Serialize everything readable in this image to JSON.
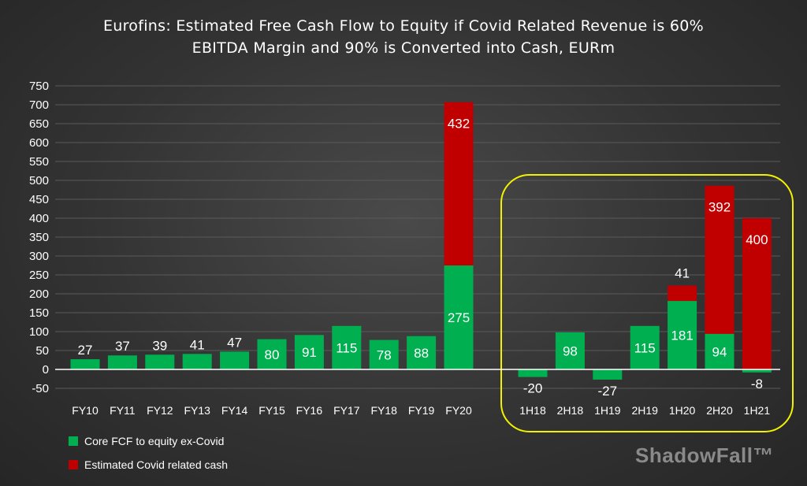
{
  "chart_data": {
    "type": "bar",
    "stacked": true,
    "title": "Eurofins: Estimated Free Cash Flow to Equity if Covid Related Revenue is 60%",
    "subtitle": "EBITDA Margin and 90% is Converted into Cash, EURm",
    "xlabel": "",
    "ylabel": "",
    "ylim": [
      -50,
      750
    ],
    "yticks": [
      -50,
      0,
      50,
      100,
      150,
      200,
      250,
      300,
      350,
      400,
      450,
      500,
      550,
      600,
      650,
      700,
      750
    ],
    "grid": true,
    "legend_position": "bottom-left",
    "categories": [
      "FY10",
      "FY11",
      "FY12",
      "FY13",
      "FY14",
      "FY15",
      "FY16",
      "FY17",
      "FY18",
      "FY19",
      "FY20",
      "1H18",
      "2H18",
      "1H19",
      "2H19",
      "1H20",
      "2H20",
      "1H21"
    ],
    "series": [
      {
        "name": "Core FCF to equity ex-Covid",
        "color": "#00b050",
        "values": [
          27,
          37,
          39,
          41,
          47,
          80,
          91,
          115,
          78,
          88,
          275,
          -20,
          98,
          -27,
          115,
          181,
          94,
          -8
        ],
        "labels": [
          "27",
          "37",
          "39",
          "41",
          "47",
          "80",
          "91",
          "115",
          "78",
          "88",
          "275",
          "-20",
          "98",
          "-27",
          "115",
          "181",
          "94",
          "-8"
        ]
      },
      {
        "name": "Estimated Covid related cash",
        "color": "#c00000",
        "values": [
          0,
          0,
          0,
          0,
          0,
          0,
          0,
          0,
          0,
          0,
          432,
          0,
          0,
          0,
          0,
          41,
          392,
          400
        ],
        "labels": [
          "",
          "",
          "",
          "",
          "",
          "",
          "",
          "",
          "",
          "",
          "432",
          "",
          "",
          "",
          "",
          "41",
          "392",
          "400"
        ]
      }
    ],
    "highlight_box": {
      "from_category": "1H18",
      "to_category": "1H21",
      "color": "#f2f200"
    }
  },
  "watermark": "ShadowFall™"
}
